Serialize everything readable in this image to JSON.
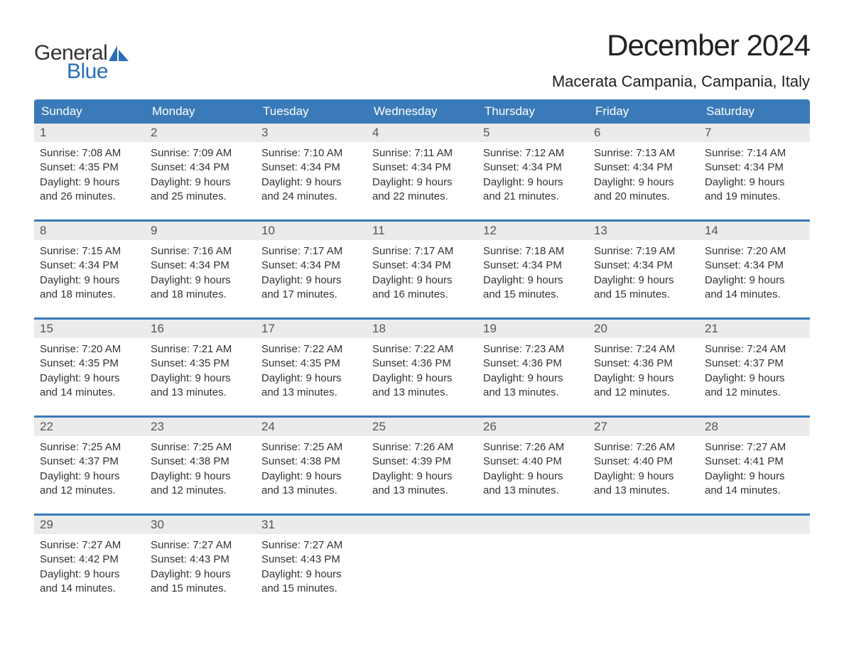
{
  "logo": {
    "word1": "General",
    "word2": "Blue",
    "word1_color": "#333333",
    "word2_color": "#2a6fb5",
    "sail_color": "#2a6fb5"
  },
  "title": "December 2024",
  "location": "Macerata Campania, Campania, Italy",
  "colors": {
    "header_bg": "#3a7ab8",
    "header_text": "#ffffff",
    "daynum_bg": "#ebebeb",
    "daynum_text": "#555555",
    "body_text": "#333333",
    "week_border": "#3a7ab8",
    "background": "#ffffff"
  },
  "fonts": {
    "title_size_pt": 32,
    "location_size_pt": 17,
    "header_size_pt": 13,
    "daynum_size_pt": 13,
    "body_size_pt": 11
  },
  "day_headers": [
    "Sunday",
    "Monday",
    "Tuesday",
    "Wednesday",
    "Thursday",
    "Friday",
    "Saturday"
  ],
  "weeks": [
    [
      {
        "num": "1",
        "sunrise": "Sunrise: 7:08 AM",
        "sunset": "Sunset: 4:35 PM",
        "dl1": "Daylight: 9 hours",
        "dl2": "and 26 minutes."
      },
      {
        "num": "2",
        "sunrise": "Sunrise: 7:09 AM",
        "sunset": "Sunset: 4:34 PM",
        "dl1": "Daylight: 9 hours",
        "dl2": "and 25 minutes."
      },
      {
        "num": "3",
        "sunrise": "Sunrise: 7:10 AM",
        "sunset": "Sunset: 4:34 PM",
        "dl1": "Daylight: 9 hours",
        "dl2": "and 24 minutes."
      },
      {
        "num": "4",
        "sunrise": "Sunrise: 7:11 AM",
        "sunset": "Sunset: 4:34 PM",
        "dl1": "Daylight: 9 hours",
        "dl2": "and 22 minutes."
      },
      {
        "num": "5",
        "sunrise": "Sunrise: 7:12 AM",
        "sunset": "Sunset: 4:34 PM",
        "dl1": "Daylight: 9 hours",
        "dl2": "and 21 minutes."
      },
      {
        "num": "6",
        "sunrise": "Sunrise: 7:13 AM",
        "sunset": "Sunset: 4:34 PM",
        "dl1": "Daylight: 9 hours",
        "dl2": "and 20 minutes."
      },
      {
        "num": "7",
        "sunrise": "Sunrise: 7:14 AM",
        "sunset": "Sunset: 4:34 PM",
        "dl1": "Daylight: 9 hours",
        "dl2": "and 19 minutes."
      }
    ],
    [
      {
        "num": "8",
        "sunrise": "Sunrise: 7:15 AM",
        "sunset": "Sunset: 4:34 PM",
        "dl1": "Daylight: 9 hours",
        "dl2": "and 18 minutes."
      },
      {
        "num": "9",
        "sunrise": "Sunrise: 7:16 AM",
        "sunset": "Sunset: 4:34 PM",
        "dl1": "Daylight: 9 hours",
        "dl2": "and 18 minutes."
      },
      {
        "num": "10",
        "sunrise": "Sunrise: 7:17 AM",
        "sunset": "Sunset: 4:34 PM",
        "dl1": "Daylight: 9 hours",
        "dl2": "and 17 minutes."
      },
      {
        "num": "11",
        "sunrise": "Sunrise: 7:17 AM",
        "sunset": "Sunset: 4:34 PM",
        "dl1": "Daylight: 9 hours",
        "dl2": "and 16 minutes."
      },
      {
        "num": "12",
        "sunrise": "Sunrise: 7:18 AM",
        "sunset": "Sunset: 4:34 PM",
        "dl1": "Daylight: 9 hours",
        "dl2": "and 15 minutes."
      },
      {
        "num": "13",
        "sunrise": "Sunrise: 7:19 AM",
        "sunset": "Sunset: 4:34 PM",
        "dl1": "Daylight: 9 hours",
        "dl2": "and 15 minutes."
      },
      {
        "num": "14",
        "sunrise": "Sunrise: 7:20 AM",
        "sunset": "Sunset: 4:34 PM",
        "dl1": "Daylight: 9 hours",
        "dl2": "and 14 minutes."
      }
    ],
    [
      {
        "num": "15",
        "sunrise": "Sunrise: 7:20 AM",
        "sunset": "Sunset: 4:35 PM",
        "dl1": "Daylight: 9 hours",
        "dl2": "and 14 minutes."
      },
      {
        "num": "16",
        "sunrise": "Sunrise: 7:21 AM",
        "sunset": "Sunset: 4:35 PM",
        "dl1": "Daylight: 9 hours",
        "dl2": "and 13 minutes."
      },
      {
        "num": "17",
        "sunrise": "Sunrise: 7:22 AM",
        "sunset": "Sunset: 4:35 PM",
        "dl1": "Daylight: 9 hours",
        "dl2": "and 13 minutes."
      },
      {
        "num": "18",
        "sunrise": "Sunrise: 7:22 AM",
        "sunset": "Sunset: 4:36 PM",
        "dl1": "Daylight: 9 hours",
        "dl2": "and 13 minutes."
      },
      {
        "num": "19",
        "sunrise": "Sunrise: 7:23 AM",
        "sunset": "Sunset: 4:36 PM",
        "dl1": "Daylight: 9 hours",
        "dl2": "and 13 minutes."
      },
      {
        "num": "20",
        "sunrise": "Sunrise: 7:24 AM",
        "sunset": "Sunset: 4:36 PM",
        "dl1": "Daylight: 9 hours",
        "dl2": "and 12 minutes."
      },
      {
        "num": "21",
        "sunrise": "Sunrise: 7:24 AM",
        "sunset": "Sunset: 4:37 PM",
        "dl1": "Daylight: 9 hours",
        "dl2": "and 12 minutes."
      }
    ],
    [
      {
        "num": "22",
        "sunrise": "Sunrise: 7:25 AM",
        "sunset": "Sunset: 4:37 PM",
        "dl1": "Daylight: 9 hours",
        "dl2": "and 12 minutes."
      },
      {
        "num": "23",
        "sunrise": "Sunrise: 7:25 AM",
        "sunset": "Sunset: 4:38 PM",
        "dl1": "Daylight: 9 hours",
        "dl2": "and 12 minutes."
      },
      {
        "num": "24",
        "sunrise": "Sunrise: 7:25 AM",
        "sunset": "Sunset: 4:38 PM",
        "dl1": "Daylight: 9 hours",
        "dl2": "and 13 minutes."
      },
      {
        "num": "25",
        "sunrise": "Sunrise: 7:26 AM",
        "sunset": "Sunset: 4:39 PM",
        "dl1": "Daylight: 9 hours",
        "dl2": "and 13 minutes."
      },
      {
        "num": "26",
        "sunrise": "Sunrise: 7:26 AM",
        "sunset": "Sunset: 4:40 PM",
        "dl1": "Daylight: 9 hours",
        "dl2": "and 13 minutes."
      },
      {
        "num": "27",
        "sunrise": "Sunrise: 7:26 AM",
        "sunset": "Sunset: 4:40 PM",
        "dl1": "Daylight: 9 hours",
        "dl2": "and 13 minutes."
      },
      {
        "num": "28",
        "sunrise": "Sunrise: 7:27 AM",
        "sunset": "Sunset: 4:41 PM",
        "dl1": "Daylight: 9 hours",
        "dl2": "and 14 minutes."
      }
    ],
    [
      {
        "num": "29",
        "sunrise": "Sunrise: 7:27 AM",
        "sunset": "Sunset: 4:42 PM",
        "dl1": "Daylight: 9 hours",
        "dl2": "and 14 minutes."
      },
      {
        "num": "30",
        "sunrise": "Sunrise: 7:27 AM",
        "sunset": "Sunset: 4:43 PM",
        "dl1": "Daylight: 9 hours",
        "dl2": "and 15 minutes."
      },
      {
        "num": "31",
        "sunrise": "Sunrise: 7:27 AM",
        "sunset": "Sunset: 4:43 PM",
        "dl1": "Daylight: 9 hours",
        "dl2": "and 15 minutes."
      },
      null,
      null,
      null,
      null
    ]
  ]
}
